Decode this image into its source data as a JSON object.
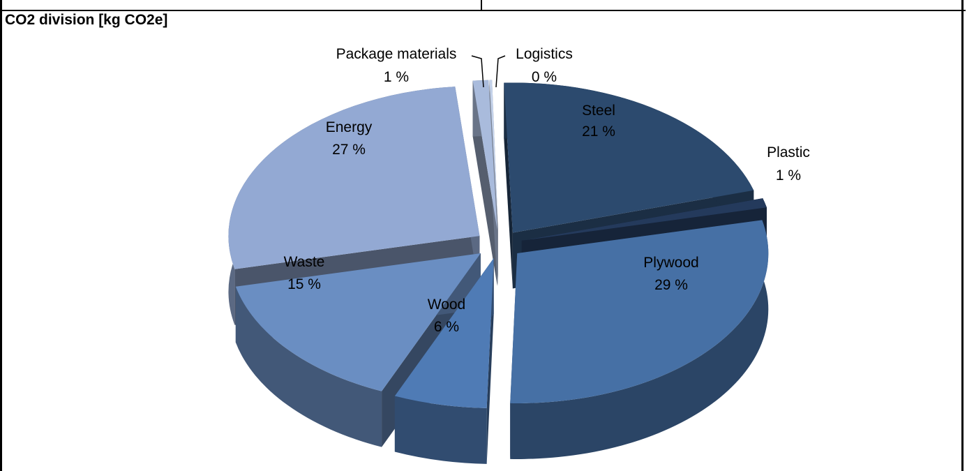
{
  "title": "CO2 division [kg CO2e]",
  "chart_data": {
    "type": "pie",
    "three_d": true,
    "exploded": true,
    "title": "CO2 division [kg CO2e]",
    "slices": [
      {
        "label": "Steel",
        "value": 21,
        "display": "21 %",
        "color": "#2c4a6e"
      },
      {
        "label": "Plastic",
        "value": 1,
        "display": "1 %",
        "color": "#243a5c"
      },
      {
        "label": "Plywood",
        "value": 29,
        "display": "29 %",
        "color": "#4670a5"
      },
      {
        "label": "Wood",
        "value": 6,
        "display": "6 %",
        "color": "#4f7bb5"
      },
      {
        "label": "Waste",
        "value": 15,
        "display": "15 %",
        "color": "#6a8ec2"
      },
      {
        "label": "Energy",
        "value": 27,
        "display": "27 %",
        "color": "#93a9d3"
      },
      {
        "label": "Package materials",
        "value": 1,
        "display": "1 %",
        "color": "#a9bbdc"
      },
      {
        "label": "Logistics",
        "value": 0,
        "display": "0 %",
        "color": "#c4d2ea"
      }
    ]
  }
}
